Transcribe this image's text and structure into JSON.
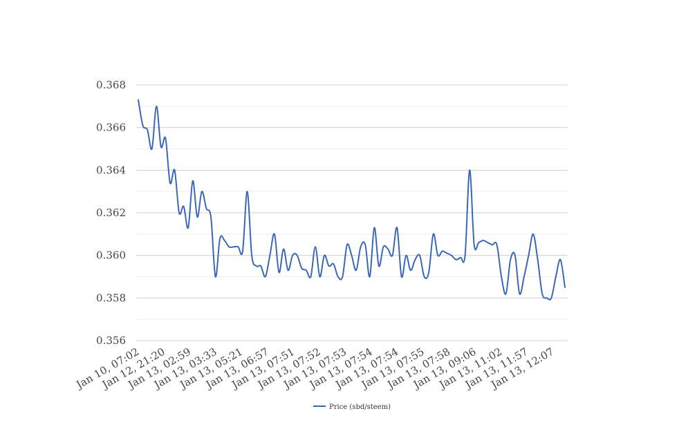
{
  "chart_data": {
    "type": "line",
    "title": "",
    "xlabel": "",
    "ylabel": "",
    "ylim": [
      0.356,
      0.368
    ],
    "yticks": [
      "0.356",
      "0.358",
      "0.360",
      "0.362",
      "0.364",
      "0.366",
      "0.368"
    ],
    "ytick_values": [
      0.356,
      0.358,
      0.36,
      0.362,
      0.364,
      0.366,
      0.368
    ],
    "x_tick_labels": [
      "Jan 10, 07:02",
      "Jan 12, 21:20",
      "Jan 13, 02:59",
      "Jan 13, 03:33",
      "Jan 13, 05:21",
      "Jan 13, 06:57",
      "Jan 13, 07:51",
      "Jan 13, 07:52",
      "Jan 13, 07:53",
      "Jan 13, 07:54",
      "Jan 13, 07:54",
      "Jan 13, 07:55",
      "Jan 13, 07:58",
      "Jan 13, 09:06",
      "Jan 13, 11:02",
      "Jan 13, 11:57",
      "Jan 13, 12:07"
    ],
    "grid": true,
    "legend": {
      "position": "bottom"
    },
    "series": [
      {
        "name": "Price (sbd/steem)",
        "color": "#3a66b7",
        "values": [
          0.3673,
          0.3661,
          0.3659,
          0.365,
          0.367,
          0.3651,
          0.3655,
          0.3634,
          0.364,
          0.362,
          0.3623,
          0.3613,
          0.3635,
          0.3618,
          0.363,
          0.3622,
          0.3618,
          0.359,
          0.3608,
          0.3607,
          0.3604,
          0.3604,
          0.3604,
          0.3602,
          0.363,
          0.36,
          0.3595,
          0.3595,
          0.359,
          0.36,
          0.361,
          0.3592,
          0.3603,
          0.3593,
          0.36,
          0.36,
          0.3594,
          0.3593,
          0.359,
          0.3604,
          0.359,
          0.36,
          0.3595,
          0.3596,
          0.359,
          0.359,
          0.3605,
          0.36,
          0.3593,
          0.3604,
          0.3605,
          0.359,
          0.3613,
          0.3595,
          0.3604,
          0.3603,
          0.36,
          0.3613,
          0.359,
          0.36,
          0.3593,
          0.3598,
          0.36,
          0.359,
          0.3592,
          0.361,
          0.36,
          0.3602,
          0.3601,
          0.36,
          0.3598,
          0.3599,
          0.36,
          0.364,
          0.3605,
          0.3606,
          0.3607,
          0.3606,
          0.3605,
          0.3605,
          0.359,
          0.3582,
          0.3598,
          0.36,
          0.3582,
          0.359,
          0.36,
          0.361,
          0.3598,
          0.3582,
          0.358,
          0.358,
          0.359,
          0.3598,
          0.3585
        ]
      }
    ]
  }
}
